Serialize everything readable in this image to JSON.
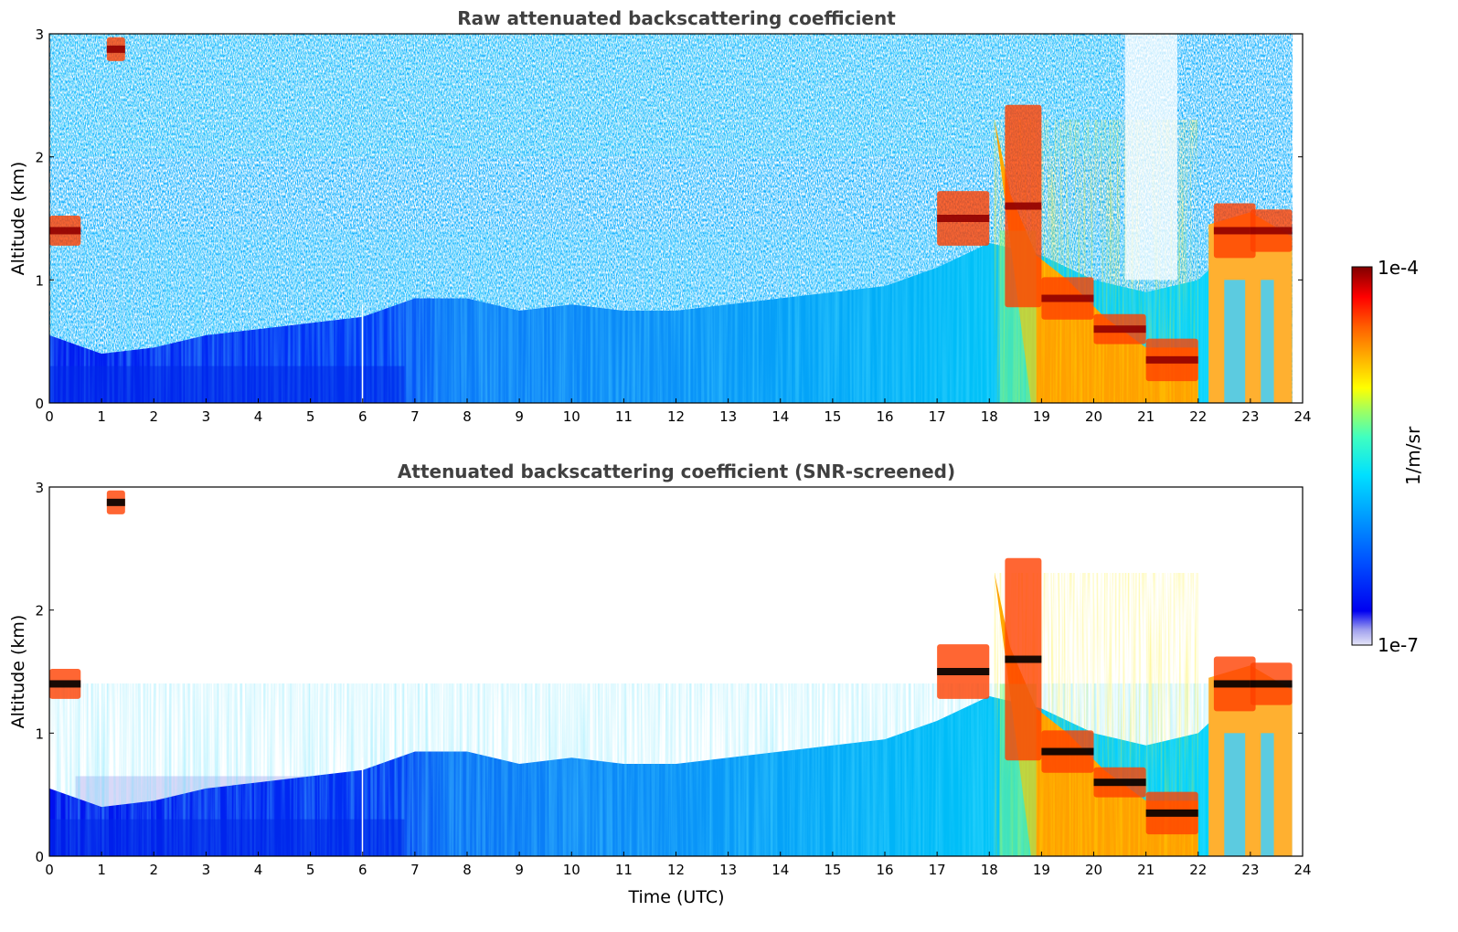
{
  "chart_data": [
    {
      "type": "heatmap",
      "title": "Raw attenuated backscattering coefficient",
      "xlabel": "",
      "ylabel": "Altitude (km)",
      "xlim": [
        0,
        24
      ],
      "ylim": [
        0,
        3
      ],
      "xticks": [
        0,
        1,
        2,
        3,
        4,
        5,
        6,
        7,
        8,
        9,
        10,
        11,
        12,
        13,
        14,
        15,
        16,
        17,
        18,
        19,
        20,
        21,
        22,
        23,
        24
      ],
      "yticks": [
        0,
        1,
        2,
        3
      ],
      "screened": false
    },
    {
      "type": "heatmap",
      "title": "Attenuated backscattering coefficient (SNR-screened)",
      "xlabel": "Time (UTC)",
      "ylabel": "Altitude (km)",
      "xlim": [
        0,
        24
      ],
      "ylim": [
        0,
        3
      ],
      "xticks": [
        0,
        1,
        2,
        3,
        4,
        5,
        6,
        7,
        8,
        9,
        10,
        11,
        12,
        13,
        14,
        15,
        16,
        17,
        18,
        19,
        20,
        21,
        22,
        23,
        24
      ],
      "yticks": [
        0,
        1,
        2,
        3
      ],
      "screened": true
    }
  ],
  "colorbar": {
    "label": "1/m/sr",
    "max_label": "1e-4",
    "min_label": "1e-7",
    "colors": [
      "#e6e6f8",
      "#b4b4f0",
      "#0000f0",
      "#0050ff",
      "#00a0ff",
      "#00e0ff",
      "#40ffc0",
      "#a0ff60",
      "#ffff00",
      "#ffb000",
      "#ff6000",
      "#ff0000",
      "#b00000",
      "#800000"
    ]
  },
  "layers": {
    "boundary_layer_top_km": [
      [
        0,
        0.55
      ],
      [
        1,
        0.4
      ],
      [
        2,
        0.45
      ],
      [
        3,
        0.55
      ],
      [
        4,
        0.6
      ],
      [
        5,
        0.65
      ],
      [
        6,
        0.7
      ],
      [
        7,
        0.85
      ],
      [
        8,
        0.85
      ],
      [
        9,
        0.75
      ],
      [
        10,
        0.8
      ],
      [
        11,
        0.75
      ],
      [
        12,
        0.75
      ],
      [
        13,
        0.8
      ],
      [
        14,
        0.85
      ],
      [
        15,
        0.9
      ],
      [
        16,
        0.95
      ],
      [
        17,
        1.1
      ],
      [
        18,
        1.3
      ],
      [
        19,
        1.2
      ],
      [
        20,
        1.0
      ],
      [
        21,
        0.9
      ],
      [
        22,
        1.0
      ],
      [
        23,
        1.4
      ],
      [
        24,
        1.4
      ]
    ],
    "cloud_segments_km": [
      [
        0.0,
        1.3,
        1.5
      ],
      [
        1.1,
        2.8,
        2.95
      ],
      [
        17.0,
        1.3,
        1.7
      ],
      [
        18.3,
        0.8,
        2.4
      ],
      [
        19.0,
        0.7,
        1.0
      ],
      [
        20.0,
        0.5,
        0.7
      ],
      [
        21.0,
        0.2,
        0.5
      ],
      [
        22.3,
        1.2,
        1.6
      ],
      [
        23.0,
        1.25,
        1.55
      ]
    ]
  }
}
